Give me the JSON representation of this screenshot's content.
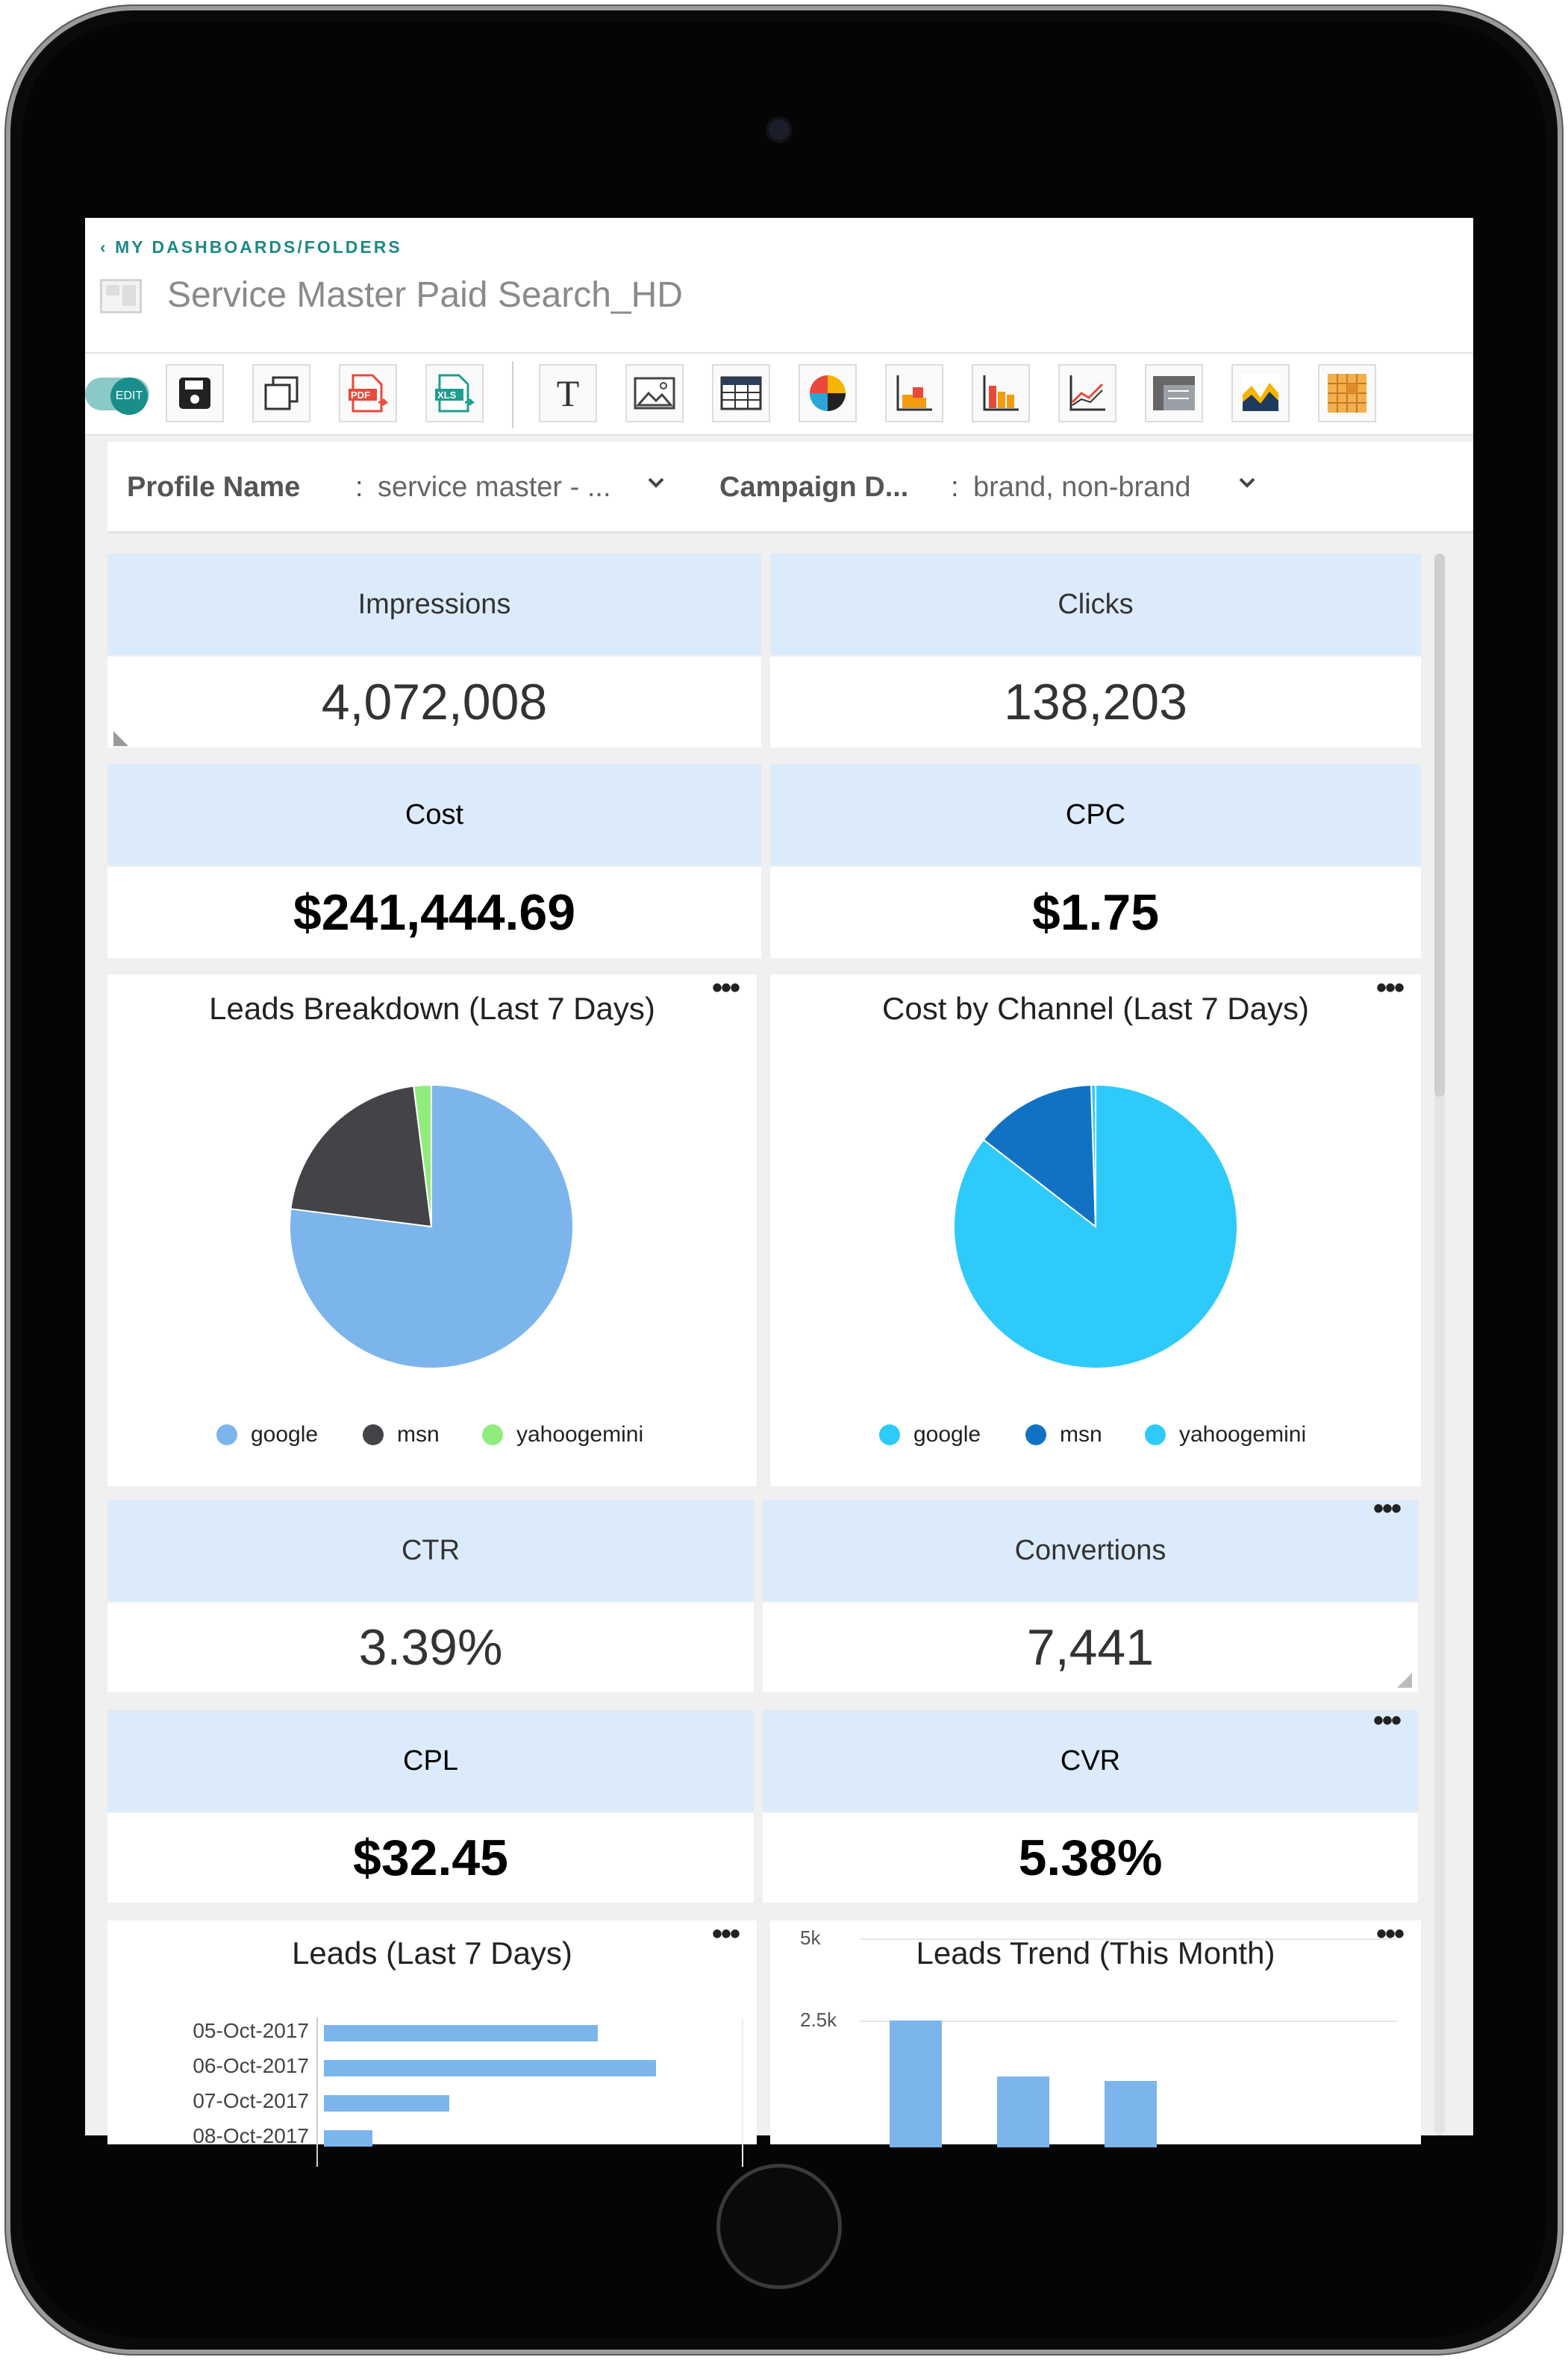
{
  "nav": {
    "breadcrumb": "MY DASHBOARDS/FOLDERS",
    "title": "Service Master Paid Search_HD"
  },
  "toolbar": {
    "edit_label": "EDIT",
    "items": [
      "save-icon",
      "duplicate-icon",
      "pdf-export-icon",
      "xls-export-icon",
      "text-icon",
      "image-icon",
      "table-icon",
      "pie-chart-icon",
      "stacked-bar-icon",
      "bar-chart-icon",
      "line-chart-icon",
      "pivot-icon",
      "area-chart-icon",
      "heatmap-icon"
    ],
    "pdf_label": "PDF",
    "xls_label": "XLS",
    "text_label": "T"
  },
  "filters": [
    {
      "label": "Profile Name",
      "value": "service master - ..."
    },
    {
      "label": "Campaign D...",
      "value": "brand, non-brand"
    }
  ],
  "kpis": {
    "impressions": {
      "label": "Impressions",
      "value": "4,072,008"
    },
    "clicks": {
      "label": "Clicks",
      "value": "138,203"
    },
    "cost": {
      "label": "Cost",
      "value": "$241,444.69"
    },
    "cpc": {
      "label": "CPC",
      "value": "$1.75"
    },
    "ctr": {
      "label": "CTR",
      "value": "3.39%"
    },
    "conversions": {
      "label": "Convertions",
      "value": "7,441"
    },
    "cpl": {
      "label": "CPL",
      "value": "$32.45"
    },
    "cvr": {
      "label": "CVR",
      "value": "5.38%"
    }
  },
  "chart_data": [
    {
      "type": "pie",
      "title": "Leads Breakdown (Last 7 Days)",
      "categories": [
        "google",
        "msn",
        "yahoogemini"
      ],
      "values": [
        77,
        21,
        2
      ],
      "colors": [
        "#7cb5ec",
        "#434348",
        "#90ed7d"
      ]
    },
    {
      "type": "pie",
      "title": "Cost by Channel (Last 7 Days)",
      "categories": [
        "google",
        "msn",
        "yahoogemini"
      ],
      "values": [
        85.5,
        14,
        0.5
      ],
      "colors": [
        "#2ecbfa",
        "#1172c4",
        "#2ecbfa"
      ]
    },
    {
      "type": "bar",
      "title": "Leads (Last 7 Days)",
      "categories": [
        "05-Oct-2017",
        "06-Oct-2017",
        "07-Oct-2017",
        "08-Oct-2017"
      ],
      "values": [
        1180,
        1430,
        540,
        210
      ],
      "xlim": [
        0,
        1800
      ],
      "color": "#7cb5ec"
    },
    {
      "type": "bar",
      "title": "Leads Trend (This Month)",
      "y_ticks": [
        "5k",
        "2.5k"
      ],
      "values": [
        2500,
        800,
        650
      ],
      "ylim": [
        0,
        5000
      ],
      "color": "#7cb5ec"
    }
  ]
}
